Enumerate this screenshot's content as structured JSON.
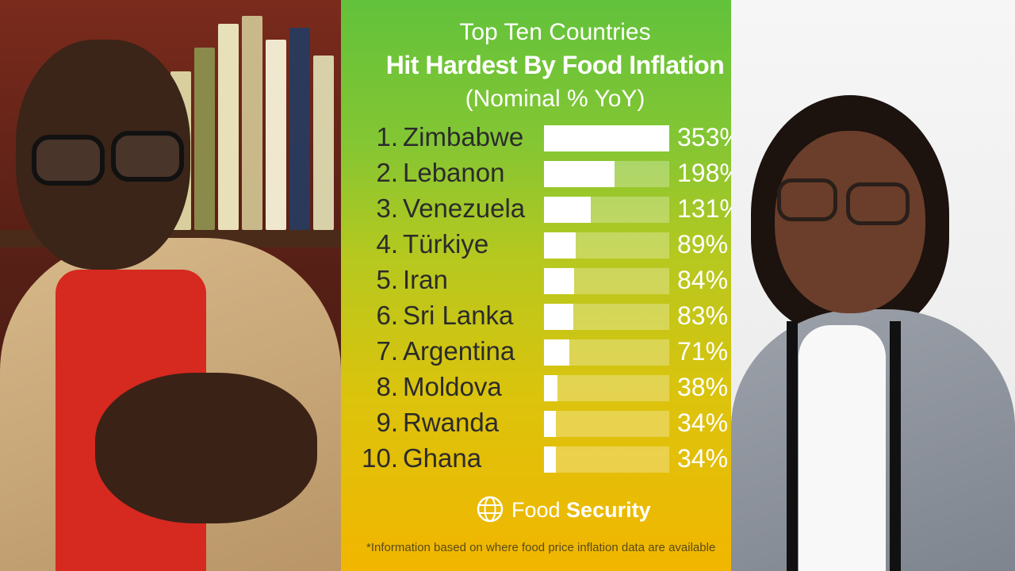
{
  "chart_data": {
    "type": "bar",
    "orientation": "horizontal",
    "title": "Top Ten Countries",
    "subtitle": "Hit Hardest By Food Inflation",
    "subtitle2": "(Nominal % YoY)",
    "ranks": [
      "1.",
      "2.",
      "3.",
      "4.",
      "5.",
      "6.",
      "7.",
      "8.",
      "9.",
      "10."
    ],
    "categories": [
      "Zimbabwe",
      "Lebanon",
      "Venezuela",
      "Türkiye",
      "Iran",
      "Sri Lanka",
      "Argentina",
      "Moldova",
      "Rwanda",
      "Ghana"
    ],
    "values": [
      353,
      198,
      131,
      89,
      84,
      83,
      71,
      38,
      34,
      34
    ],
    "value_labels": [
      "353%",
      "198%",
      "131%",
      "89%",
      "84%",
      "83%",
      "71%",
      "38%",
      "34%",
      "34%"
    ],
    "xlim": [
      0,
      353
    ],
    "grid": false,
    "legend": "none",
    "colors": {
      "bar": "#ffffff",
      "track": "rgba(255,255,255,0.28)",
      "gradient_top": "#62c23b",
      "gradient_bottom": "#f2b600"
    }
  },
  "brand": {
    "name_light": "Food ",
    "name_bold": "Security",
    "icon": "globe-icon"
  },
  "footnote": "*Information based on where food price inflation data are available"
}
